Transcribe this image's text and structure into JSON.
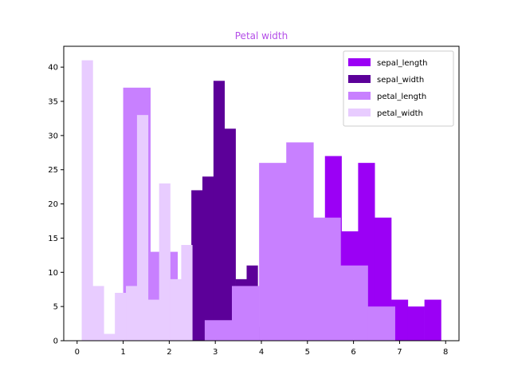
{
  "chart_data": {
    "type": "histogram",
    "title": "Petal width",
    "xlabel": "",
    "ylabel": "",
    "xlim": [
      -0.29,
      8.29
    ],
    "ylim": [
      0,
      43.05
    ],
    "xticks": [
      0,
      1,
      2,
      3,
      4,
      5,
      6,
      7,
      8
    ],
    "yticks": [
      0,
      5,
      10,
      15,
      20,
      25,
      30,
      35,
      40
    ],
    "grid": false,
    "legend_position": "top-right",
    "series": [
      {
        "name": "sepal_length",
        "color": "#9b00f5",
        "bin_edges": [
          4.3,
          4.66,
          5.02,
          5.38,
          5.74,
          6.1,
          6.46,
          6.82,
          7.18,
          7.54,
          7.9
        ],
        "counts": [
          9,
          23,
          14,
          27,
          16,
          26,
          18,
          6,
          5,
          6
        ]
      },
      {
        "name": "sepal_width",
        "color": "#5c0099",
        "bin_edges": [
          2.0,
          2.24,
          2.48,
          2.72,
          2.96,
          3.2,
          3.44,
          3.68,
          3.92,
          4.16,
          4.4
        ],
        "counts": [
          4,
          7,
          22,
          24,
          38,
          31,
          9,
          11,
          2,
          2
        ]
      },
      {
        "name": "petal_length",
        "color": "#c880ff",
        "bin_edges": [
          1.0,
          1.59,
          2.18,
          2.77,
          3.36,
          3.95,
          4.54,
          5.13,
          5.72,
          6.31,
          6.9
        ],
        "counts": [
          37,
          13,
          0,
          3,
          8,
          26,
          29,
          18,
          11,
          5
        ]
      },
      {
        "name": "petal_width",
        "color": "#e8ccff",
        "bin_edges": [
          0.1,
          0.34,
          0.58,
          0.82,
          1.06,
          1.3,
          1.54,
          1.78,
          2.02,
          2.26,
          2.5
        ],
        "counts": [
          41,
          8,
          1,
          7,
          8,
          33,
          6,
          23,
          9,
          14
        ]
      }
    ]
  },
  "colors": {
    "title": "#b44fe8",
    "axis": "#000000",
    "legend_border": "#cccccc"
  }
}
